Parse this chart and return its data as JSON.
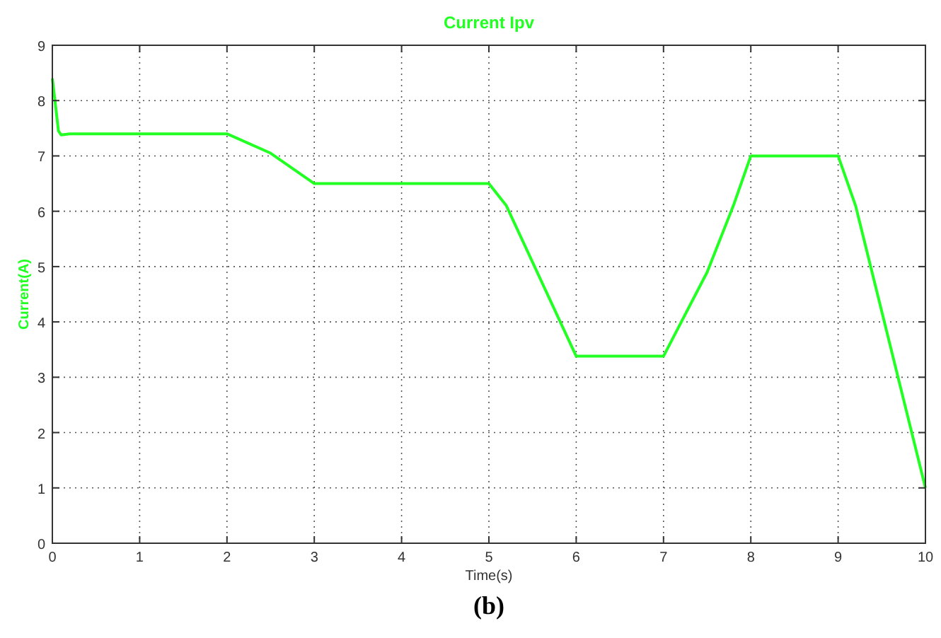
{
  "chart_data": {
    "type": "line",
    "title": "Current Ipv",
    "xlabel": "Time(s)",
    "ylabel": "Current(A)",
    "annotations": [
      "(b)"
    ],
    "x": [
      0,
      0.03,
      0.07,
      0.1,
      0.2,
      2,
      2.5,
      3,
      5,
      5.2,
      6,
      7,
      7.5,
      7.8,
      8,
      9,
      9.2,
      10
    ],
    "series": [
      {
        "color": "#22ff22",
        "values": [
          8.4,
          8.0,
          7.45,
          7.38,
          7.4,
          7.4,
          7.05,
          6.5,
          6.5,
          6.1,
          3.38,
          3.38,
          4.9,
          6.1,
          7,
          7,
          6.1,
          1
        ]
      }
    ],
    "xlim": [
      0,
      10
    ],
    "ylim": [
      0,
      9
    ],
    "xticks": [
      0,
      1,
      2,
      3,
      4,
      5,
      6,
      7,
      8,
      9,
      10
    ],
    "yticks": [
      0,
      1,
      2,
      3,
      4,
      5,
      6,
      7,
      8,
      9
    ],
    "grid": true
  }
}
